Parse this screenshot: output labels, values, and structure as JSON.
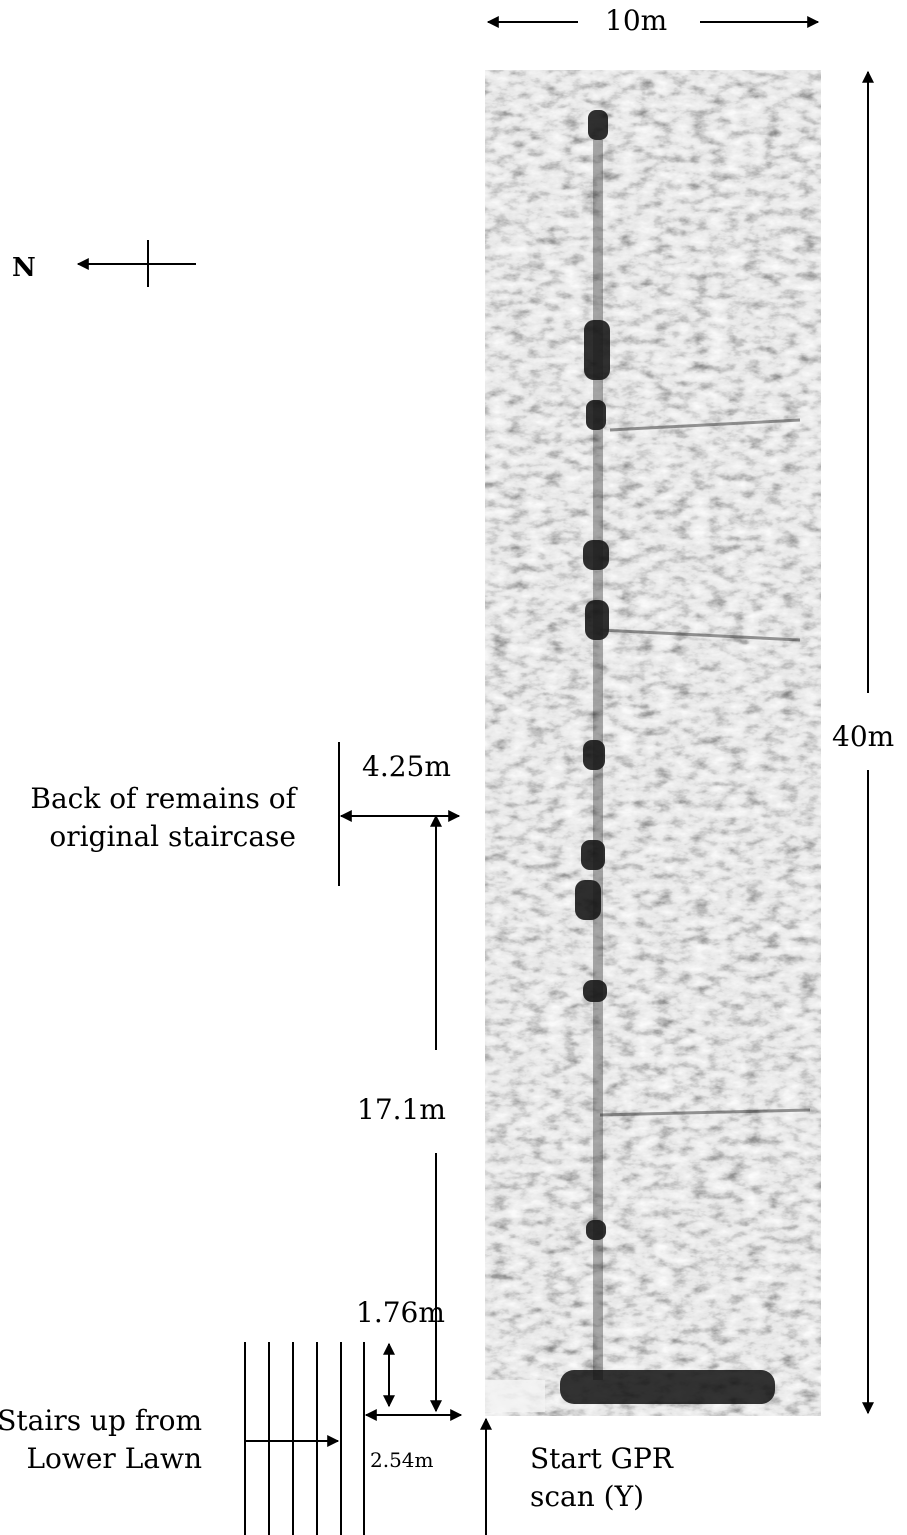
{
  "labels": {
    "width_dim": "10m",
    "length_dim": "40m",
    "north": "N",
    "staircase_offset": "4.25m",
    "staircase_label_line1": "Back of remains of",
    "staircase_label_line2": "original staircase",
    "distance_to_staircase": "17.1m",
    "stairs_vertical_offset": "1.76m",
    "stairs_horizontal_offset": "2.54m",
    "stairs_label_line1": "Stairs up from",
    "stairs_label_line2": "Lower Lawn",
    "start_label_line1": "Start GPR",
    "start_label_line2": "scan (Y)"
  },
  "colors": {
    "ink": "#000000",
    "scan_light": "#e6e6e6",
    "scan_dark": "#121212"
  }
}
